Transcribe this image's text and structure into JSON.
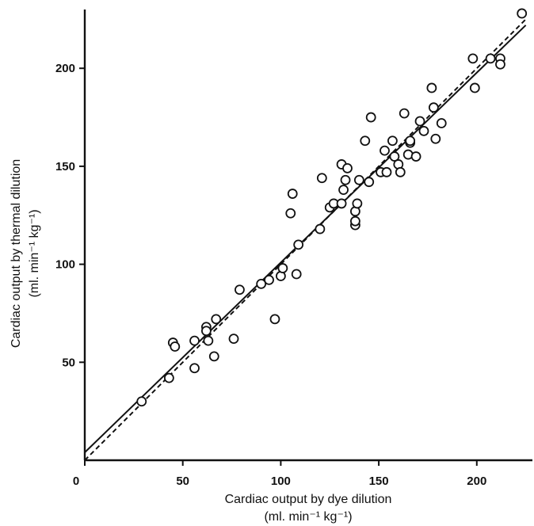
{
  "chart_data": {
    "type": "scatter",
    "xlabel": "Cardiac output by dye dilution",
    "xlabel_unit": "(ml. min⁻¹ kg⁻¹)",
    "ylabel": "Cardiac output by thermal dilution",
    "ylabel_unit": "(ml. min⁻¹ kg⁻¹)",
    "xlim": [
      0,
      230
    ],
    "ylim": [
      0,
      230
    ],
    "xticks": [
      0,
      50,
      100,
      150,
      200
    ],
    "yticks": [
      50,
      100,
      150,
      200
    ],
    "x_tick_labels": [
      "0",
      "50",
      "100",
      "150",
      "200"
    ],
    "y_tick_labels": [
      "50",
      "100",
      "150",
      "200"
    ],
    "grid": false,
    "series": [
      {
        "points": [
          [
            29,
            30
          ],
          [
            43,
            42
          ],
          [
            45,
            60
          ],
          [
            46,
            58
          ],
          [
            56,
            61
          ],
          [
            56,
            47
          ],
          [
            62,
            68
          ],
          [
            62,
            66
          ],
          [
            63,
            61
          ],
          [
            66,
            53
          ],
          [
            67,
            72
          ],
          [
            76,
            62
          ],
          [
            79,
            87
          ],
          [
            90,
            90
          ],
          [
            94,
            92
          ],
          [
            97,
            72
          ],
          [
            100,
            94
          ],
          [
            101,
            98
          ],
          [
            105,
            126
          ],
          [
            106,
            136
          ],
          [
            108,
            95
          ],
          [
            109,
            110
          ],
          [
            120,
            118
          ],
          [
            121,
            144
          ],
          [
            125,
            129
          ],
          [
            127,
            131
          ],
          [
            131,
            131
          ],
          [
            132,
            138
          ],
          [
            131,
            151
          ],
          [
            133,
            143
          ],
          [
            134,
            149
          ],
          [
            138,
            120
          ],
          [
            138,
            122
          ],
          [
            138,
            127
          ],
          [
            139,
            131
          ],
          [
            140,
            143
          ],
          [
            143,
            163
          ],
          [
            145,
            142
          ],
          [
            146,
            175
          ],
          [
            151,
            147
          ],
          [
            153,
            158
          ],
          [
            154,
            147
          ],
          [
            157,
            163
          ],
          [
            158,
            155
          ],
          [
            160,
            151
          ],
          [
            161,
            147
          ],
          [
            163,
            177
          ],
          [
            165,
            156
          ],
          [
            166,
            162
          ],
          [
            166,
            163
          ],
          [
            169,
            155
          ],
          [
            171,
            173
          ],
          [
            173,
            168
          ],
          [
            177,
            190
          ],
          [
            178,
            180
          ],
          [
            179,
            164
          ],
          [
            182,
            172
          ],
          [
            198,
            205
          ],
          [
            199,
            190
          ],
          [
            207,
            205
          ],
          [
            212,
            205
          ],
          [
            212,
            202
          ],
          [
            223,
            228
          ]
        ]
      }
    ],
    "lines": [
      {
        "style": "solid",
        "from": [
          0,
          4
        ],
        "to": [
          225,
          222
        ]
      },
      {
        "style": "dashed",
        "from": [
          0,
          0
        ],
        "to": [
          225,
          225
        ]
      }
    ]
  }
}
